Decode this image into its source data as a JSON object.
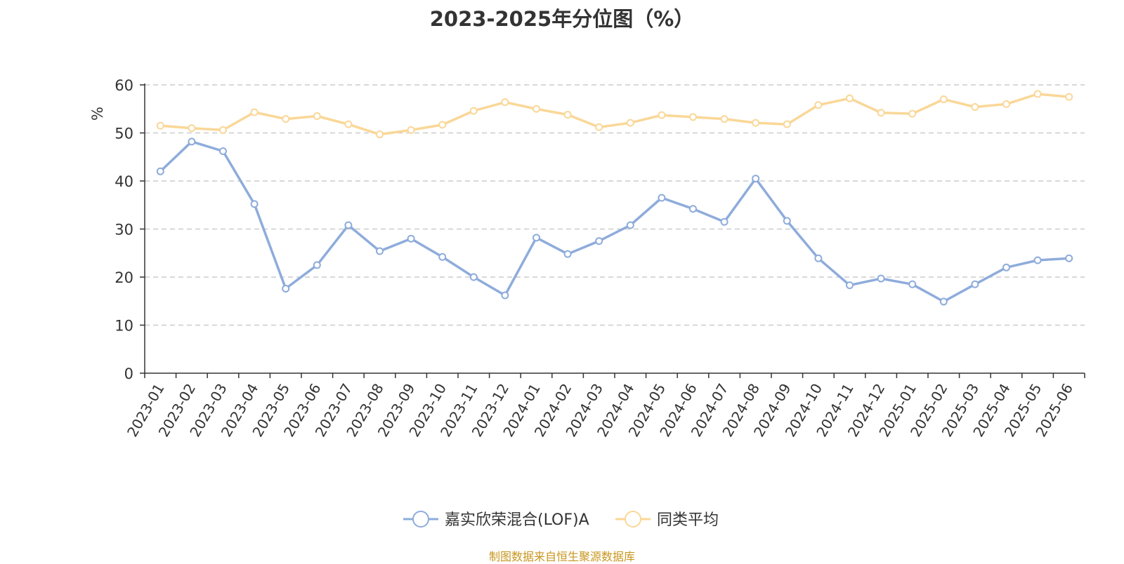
{
  "chart_data": {
    "type": "line",
    "title": "2023-2025年分位图（%）",
    "ylabel": "%",
    "xlabel": "",
    "ylim": [
      0,
      60
    ],
    "yticks": [
      0,
      10,
      20,
      30,
      40,
      50,
      60
    ],
    "grid": true,
    "legend_position": "bottom",
    "categories": [
      "2023-01",
      "2023-02",
      "2023-03",
      "2023-04",
      "2023-05",
      "2023-06",
      "2023-07",
      "2023-08",
      "2023-09",
      "2023-10",
      "2023-11",
      "2023-12",
      "2024-01",
      "2024-02",
      "2024-03",
      "2024-04",
      "2024-05",
      "2024-06",
      "2024-07",
      "2024-08",
      "2024-09",
      "2024-10",
      "2024-11",
      "2024-12",
      "2025-01",
      "2025-02",
      "2025-03",
      "2025-04",
      "2025-05",
      "2025-06"
    ],
    "series": [
      {
        "name": "嘉实欣荣混合(LOF)A",
        "color": "#8eacdb",
        "values": [
          42.0,
          48.2,
          46.2,
          35.2,
          17.6,
          22.5,
          30.8,
          25.4,
          28.0,
          24.2,
          20.0,
          16.2,
          28.2,
          24.8,
          27.5,
          30.8,
          36.5,
          34.2,
          31.5,
          40.5,
          31.7,
          23.9,
          18.3,
          19.7,
          18.5,
          14.9,
          18.5,
          22.0,
          23.5,
          23.9
        ]
      },
      {
        "name": "同类平均",
        "color": "#fad797",
        "values": [
          51.5,
          51.0,
          50.6,
          54.3,
          52.9,
          53.5,
          51.8,
          49.7,
          50.6,
          51.7,
          54.6,
          56.4,
          55.0,
          53.8,
          51.2,
          52.1,
          53.7,
          53.3,
          52.9,
          52.1,
          51.8,
          55.8,
          57.2,
          54.2,
          54.0,
          57.0,
          55.4,
          56.0,
          58.1,
          57.5
        ]
      }
    ]
  },
  "source": {
    "text": "制图数据来自恒生聚源数据库",
    "color": "#c8961e"
  },
  "axis": {
    "ylabel_color": "#e02020"
  }
}
